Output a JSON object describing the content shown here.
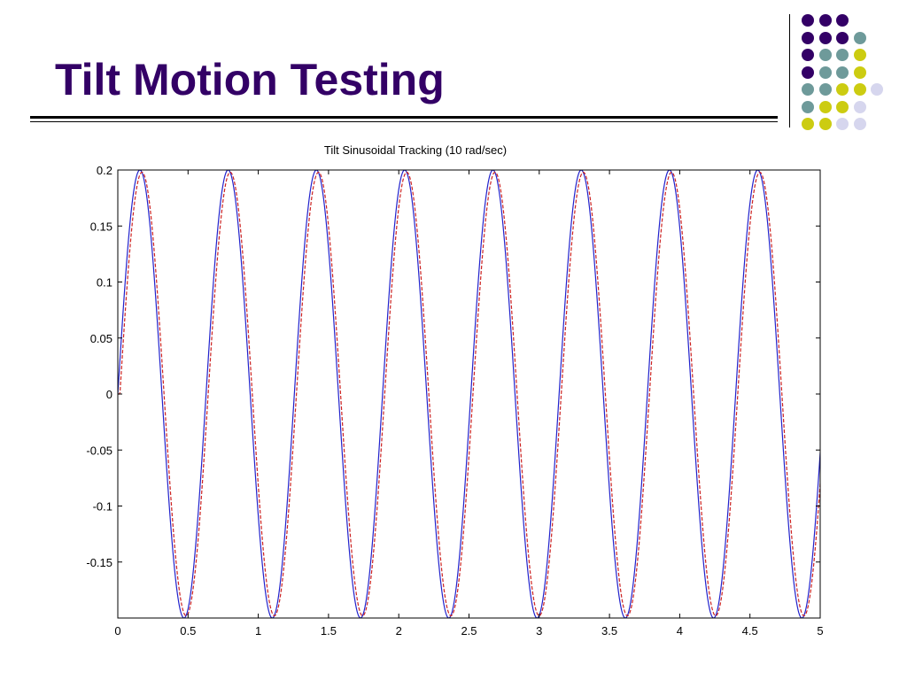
{
  "slide": {
    "title": "Tilt Motion Testing"
  },
  "decor": {
    "dot_rows": [
      [
        "purple",
        "purple",
        "purple"
      ],
      [
        "purple",
        "purple",
        "purple",
        "teal"
      ],
      [
        "purple",
        "teal",
        "teal",
        "yellow"
      ],
      [
        "purple",
        "teal",
        "teal",
        "yellow"
      ],
      [
        "teal",
        "teal",
        "yellow",
        "yellow",
        "lavender"
      ],
      [
        "teal",
        "yellow",
        "yellow",
        "lavender"
      ],
      [
        "yellow",
        "yellow",
        "lavender",
        "lavender"
      ]
    ],
    "colors": {
      "purple": "#330066",
      "teal": "#6e9a9a",
      "yellow": "#cccc11",
      "lavender": "#d6d6ee"
    }
  },
  "chart_data": {
    "type": "line",
    "title": "Tilt Sinusoidal Tracking (10 rad/sec)",
    "xlabel": "",
    "ylabel": "",
    "xlim": [
      0,
      5
    ],
    "ylim": [
      -0.2,
      0.2
    ],
    "xticks": [
      0,
      0.5,
      1,
      1.5,
      2,
      2.5,
      3,
      3.5,
      4,
      4.5,
      5
    ],
    "xtick_labels": [
      "0",
      "0.5",
      "1",
      "1.5",
      "2",
      "2.5",
      "3",
      "3.5",
      "4",
      "4.5",
      "5"
    ],
    "yticks": [
      0.2,
      0.15,
      0.1,
      0.05,
      0,
      -0.05,
      -0.1,
      -0.15
    ],
    "ytick_labels": [
      "0.2",
      "0.15",
      "0.1",
      "0.05",
      "0",
      "-0.05",
      "-0.1",
      "-0.15"
    ],
    "grid": false,
    "series": [
      {
        "color": "#2222cc",
        "style": "solid",
        "amplitude": 0.2,
        "angular_frequency_rad_s": 10,
        "phase_lag_s": 0
      },
      {
        "color": "#cc2222",
        "style": "dashed",
        "amplitude": 0.198,
        "angular_frequency_rad_s": 10,
        "phase_lag_s": 0.015
      }
    ]
  }
}
